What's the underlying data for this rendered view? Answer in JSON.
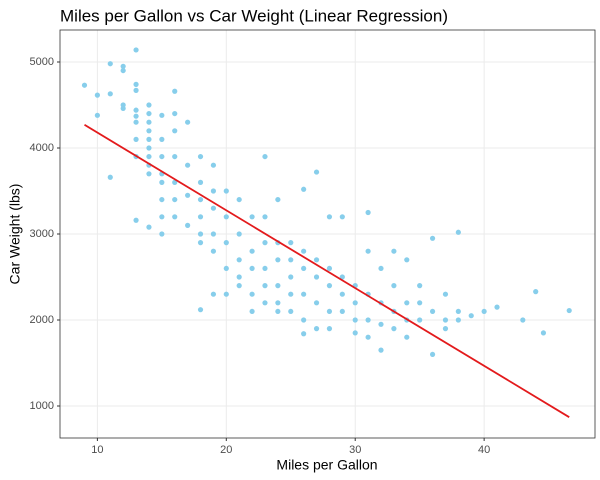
{
  "chart_data": {
    "type": "scatter",
    "title": "Miles per Gallon vs Car Weight (Linear Regression)",
    "x_label": "Miles per Gallon",
    "y_label": "Car Weight (lbs)",
    "xlim": [
      7.1,
      48.6
    ],
    "ylim": [
      628,
      5372
    ],
    "xticks": [
      10,
      20,
      30,
      40
    ],
    "yticks": [
      1000,
      2000,
      3000,
      4000,
      5000
    ],
    "grid": true,
    "color": "#87ceeb",
    "x": [
      9,
      10,
      10,
      11,
      11,
      11,
      12,
      12,
      12,
      12,
      13,
      13,
      13,
      13,
      13,
      13,
      13,
      13,
      13,
      14,
      14,
      14,
      14,
      14,
      14,
      14,
      14,
      14,
      14,
      15,
      15,
      15,
      15,
      15,
      15,
      15,
      15,
      16,
      16,
      16,
      16,
      16,
      16,
      16,
      17,
      17,
      17,
      17,
      18,
      18,
      18,
      18,
      18,
      18,
      18,
      19,
      19,
      19,
      19,
      19,
      19,
      20,
      20,
      20,
      20,
      20,
      21,
      21,
      21,
      21,
      21,
      22,
      22,
      22,
      22,
      22,
      23,
      23,
      23,
      23,
      23,
      23,
      24,
      24,
      24,
      24,
      24,
      24,
      25,
      25,
      25,
      25,
      25,
      26,
      26,
      26,
      26,
      26,
      26,
      27,
      27,
      27,
      27,
      27,
      28,
      28,
      28,
      28,
      28,
      29,
      29,
      29,
      29,
      30,
      30,
      30,
      30,
      31,
      31,
      31,
      31,
      31,
      32,
      32,
      32,
      32,
      33,
      33,
      33,
      33,
      34,
      34,
      34,
      34,
      35,
      35,
      35,
      36,
      36,
      36,
      37,
      37,
      37,
      38,
      38,
      38,
      39,
      40,
      41,
      43,
      44,
      44.6,
      46.6
    ],
    "values": [
      4730,
      4615,
      4380,
      4980,
      4630,
      3660,
      4950,
      4900,
      4460,
      4500,
      5140,
      4740,
      4670,
      4440,
      4370,
      4300,
      4100,
      3900,
      3160,
      4500,
      4400,
      4300,
      4200,
      4100,
      4000,
      3900,
      3800,
      3700,
      3080,
      4380,
      4100,
      3900,
      3700,
      3600,
      3400,
      3200,
      3000,
      4660,
      4400,
      4200,
      3900,
      3600,
      3400,
      3200,
      4300,
      3800,
      3450,
      3100,
      3900,
      3600,
      3400,
      3200,
      3000,
      2900,
      2120,
      3800,
      3500,
      3300,
      3000,
      2800,
      2300,
      3500,
      3200,
      2900,
      2600,
      2300,
      3400,
      3000,
      2700,
      2500,
      2400,
      3200,
      2800,
      2600,
      2300,
      2100,
      3900,
      3200,
      2900,
      2600,
      2400,
      2200,
      3400,
      2900,
      2700,
      2400,
      2200,
      2100,
      2900,
      2700,
      2500,
      2300,
      2100,
      3520,
      2800,
      2600,
      2300,
      2000,
      1840,
      3720,
      2700,
      2500,
      2200,
      1900,
      3200,
      2600,
      2400,
      2100,
      1900,
      3200,
      2500,
      2300,
      2100,
      2400,
      2200,
      2000,
      1850,
      3250,
      2800,
      2300,
      2000,
      1800,
      2600,
      2200,
      1950,
      1650,
      2800,
      2400,
      2100,
      1900,
      2700,
      2200,
      2000,
      1800,
      2400,
      2200,
      2000,
      2950,
      2100,
      1600,
      2300,
      2000,
      1900,
      3020,
      2100,
      2000,
      2050,
      2100,
      2150,
      2000,
      2330,
      1850,
      2110
    ],
    "fit": {
      "x": [
        9,
        46.6
      ],
      "values": [
        4270,
        870
      ],
      "color": "#e31a1c"
    }
  }
}
